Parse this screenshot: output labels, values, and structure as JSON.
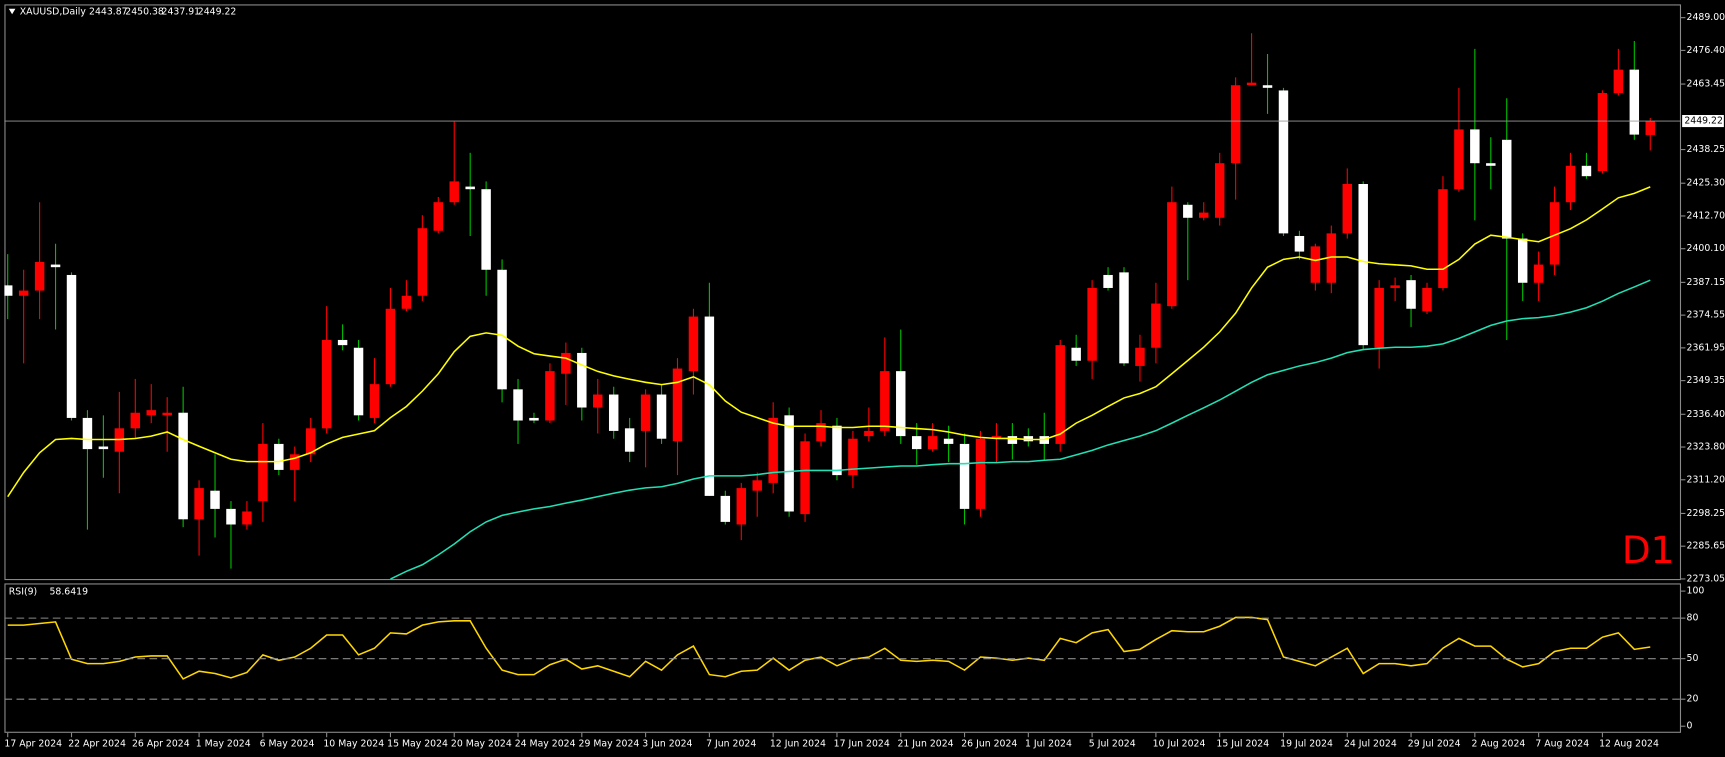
{
  "chart_data": [
    {
      "type": "candlestick",
      "title": "XAUUSD,Daily",
      "annotation": "D1",
      "categories": [
        "17 Apr 2024",
        null,
        null,
        null,
        "22 Apr 2024",
        null,
        null,
        null,
        "26 Apr 2024",
        null,
        null,
        null,
        "1 May 2024",
        null,
        null,
        null,
        "6 May 2024",
        null,
        null,
        null,
        "10 May 2024",
        null,
        null,
        null,
        "15 May 2024",
        null,
        null,
        null,
        "20 May 2024",
        null,
        null,
        null,
        "24 May 2024",
        null,
        null,
        null,
        "29 May 2024",
        null,
        null,
        null,
        "3 Jun 2024",
        null,
        null,
        null,
        "7 Jun 2024",
        null,
        null,
        null,
        "12 Jun 2024",
        null,
        null,
        null,
        "17 Jun 2024",
        null,
        null,
        null,
        "21 Jun 2024",
        null,
        null,
        null,
        "26 Jun 2024",
        null,
        null,
        null,
        "1 Jul 2024",
        null,
        null,
        null,
        "5 Jul 2024",
        null,
        null,
        null,
        "10 Jul 2024",
        null,
        null,
        null,
        "15 Jul 2024",
        null,
        null,
        null,
        "19 Jul 2024",
        null,
        null,
        null,
        "24 Jul 2024",
        null,
        null,
        null,
        "29 Jul 2024",
        null,
        null,
        null,
        "2 Aug 2024",
        null,
        null,
        null,
        "7 Aug 2024",
        null,
        null,
        null,
        "12 Aug 2024",
        null,
        null,
        null
      ],
      "open": [
        2386,
        2382,
        2384,
        2394,
        2390,
        2335,
        2324,
        2322,
        2331,
        2336,
        2336,
        2337,
        2296,
        2307,
        2300,
        2294,
        2303,
        2325,
        2315,
        2321,
        2331,
        2365,
        2362,
        2335,
        2348,
        2377,
        2382,
        2407,
        2418,
        2424,
        2423,
        2392,
        2346,
        2335,
        2334,
        2352,
        2360,
        2339,
        2344,
        2331,
        2330,
        2344,
        2326,
        2353,
        2374,
        2305,
        2294,
        2307,
        2310,
        2336,
        2298,
        2326,
        2332,
        2313,
        2328,
        2330,
        2353,
        2328,
        2323,
        2327,
        2325,
        2300,
        2327,
        2328,
        2328,
        2328,
        2325,
        2362,
        2357,
        2390,
        2391,
        2355,
        2362,
        2378,
        2417,
        2412,
        2412,
        2433,
        2463,
        2463,
        2461,
        2405,
        2387,
        2387,
        2406,
        2425,
        2362,
        2385,
        2388,
        2376,
        2385,
        2423,
        2446,
        2433,
        2442,
        2404,
        2387,
        2394,
        2418,
        2432,
        2430,
        2460,
        2469,
        2443.87
      ],
      "high": [
        2398,
        2392,
        2418,
        2402,
        2391,
        2338,
        2336,
        2345,
        2350,
        2348,
        2343,
        2347,
        2311,
        2321,
        2303,
        2303,
        2333,
        2327,
        2324,
        2335,
        2378,
        2371,
        2365,
        2358,
        2385,
        2388,
        2413,
        2420,
        2449,
        2437,
        2426,
        2396,
        2350,
        2337,
        2356,
        2364,
        2362,
        2350,
        2347,
        2335,
        2346,
        2348,
        2358,
        2377,
        2387,
        2307,
        2310,
        2314,
        2341,
        2339,
        2329,
        2338,
        2335,
        2330,
        2339,
        2366,
        2369,
        2333,
        2333,
        2332,
        2329,
        2330,
        2333,
        2333,
        2331,
        2337,
        2365,
        2367,
        2388,
        2393,
        2393,
        2367,
        2387,
        2424,
        2418,
        2418,
        2437,
        2466,
        2483,
        2475,
        2462,
        2407,
        2402,
        2409,
        2431,
        2426,
        2388,
        2389,
        2390,
        2387,
        2428,
        2462,
        2477,
        2443,
        2458,
        2406,
        2399,
        2424,
        2437,
        2437,
        2461,
        2477,
        2480,
        2450.38
      ],
      "low": [
        2373,
        2356,
        2373,
        2369,
        2334,
        2292,
        2312,
        2306,
        2327,
        2333,
        2322,
        2293,
        2282,
        2289,
        2277,
        2292,
        2295,
        2313,
        2303,
        2318,
        2329,
        2361,
        2334,
        2333,
        2347,
        2376,
        2380,
        2406,
        2417,
        2405,
        2382,
        2341,
        2325,
        2333,
        2333,
        2340,
        2334,
        2329,
        2327,
        2318,
        2316,
        2325,
        2313,
        2344,
        2305,
        2294,
        2288,
        2297,
        2306,
        2297,
        2295,
        2324,
        2311,
        2308,
        2326,
        2328,
        2325,
        2317,
        2322,
        2318,
        2294,
        2297,
        2318,
        2319,
        2324,
        2319,
        2322,
        2355,
        2350,
        2384,
        2355,
        2349,
        2356,
        2377,
        2388,
        2411,
        2409,
        2419,
        2463,
        2452,
        2405,
        2396,
        2384,
        2383,
        2404,
        2361,
        2354,
        2380,
        2370,
        2375,
        2384,
        2422,
        2411,
        2423,
        2365,
        2380,
        2380,
        2390,
        2415,
        2427,
        2429,
        2459,
        2442,
        2437.91
      ],
      "close": [
        2382,
        2384,
        2395,
        2393,
        2335,
        2323,
        2323,
        2331,
        2337,
        2338,
        2337,
        2296,
        2308,
        2300,
        2294,
        2299,
        2325,
        2315,
        2321,
        2331,
        2365,
        2363,
        2336,
        2348,
        2377,
        2382,
        2408,
        2418,
        2426,
        2423,
        2392,
        2346,
        2334,
        2334,
        2353,
        2360,
        2339,
        2344,
        2330,
        2322,
        2344,
        2327,
        2354,
        2374,
        2305,
        2295,
        2308,
        2311,
        2335,
        2299,
        2326,
        2333,
        2313,
        2327,
        2330,
        2353,
        2328,
        2323,
        2328,
        2325,
        2300,
        2327,
        2328,
        2325,
        2326,
        2325,
        2363,
        2357,
        2385,
        2385,
        2356,
        2362,
        2379,
        2418,
        2412,
        2414,
        2433,
        2463,
        2464,
        2462,
        2406,
        2399,
        2401,
        2406,
        2425,
        2363,
        2385,
        2386,
        2377,
        2385,
        2423,
        2446,
        2433,
        2432,
        2404,
        2387,
        2394,
        2418,
        2432,
        2428,
        2460,
        2469,
        2444,
        2449.22
      ],
      "up_color": "#ff0000",
      "down_color": "#ffffff",
      "wick_up_color": "#ff0000",
      "wick_down_color": "#00c000",
      "series": [
        {
          "color": "#ffff00",
          "values": [
            2304.7,
            2314.0,
            2321.6,
            2326.7,
            2327.1,
            2326.7,
            2326.7,
            2326.7,
            2327.1,
            2328.0,
            2329.6,
            2326.7,
            2324.1,
            2321.6,
            2319.1,
            2318.2,
            2318.2,
            2318.2,
            2319.5,
            2321.6,
            2325.0,
            2327.5,
            2328.8,
            2330.1,
            2335.1,
            2339.4,
            2345.3,
            2352.0,
            2360.5,
            2366.4,
            2367.7,
            2366.8,
            2362.6,
            2359.7,
            2358.8,
            2358.0,
            2355.4,
            2352.9,
            2351.2,
            2349.9,
            2348.7,
            2347.8,
            2348.7,
            2350.8,
            2347.8,
            2341.5,
            2337.2,
            2335.1,
            2333.0,
            2331.8,
            2331.8,
            2331.8,
            2331.3,
            2331.3,
            2331.8,
            2331.8,
            2331.3,
            2330.9,
            2330.5,
            2329.6,
            2328.4,
            2327.5,
            2327.1,
            2327.1,
            2326.7,
            2326.7,
            2328.8,
            2333.0,
            2336.0,
            2339.4,
            2342.7,
            2344.4,
            2347.0,
            2352.0,
            2357.1,
            2362.2,
            2368.1,
            2375.3,
            2385.0,
            2393.0,
            2396.0,
            2396.9,
            2395.6,
            2396.9,
            2396.9,
            2395.2,
            2394.3,
            2393.9,
            2393.5,
            2392.2,
            2392.2,
            2396.0,
            2401.9,
            2405.3,
            2404.5,
            2403.6,
            2402.8,
            2405.3,
            2407.8,
            2411.2,
            2415.4,
            2419.7,
            2421.4,
            2423.9
          ]
        },
        {
          "color": "#20e0b4",
          "values": [
            null,
            null,
            null,
            null,
            null,
            null,
            null,
            null,
            null,
            null,
            null,
            null,
            null,
            null,
            null,
            null,
            null,
            null,
            null,
            null,
            null,
            null,
            null,
            null,
            2273.0,
            2276.0,
            2278.5,
            2282.3,
            2286.5,
            2291.2,
            2295.0,
            2297.5,
            2298.8,
            2300.0,
            2300.9,
            2302.2,
            2303.4,
            2304.7,
            2306.0,
            2307.2,
            2308.1,
            2308.5,
            2309.8,
            2311.5,
            2312.7,
            2312.7,
            2312.7,
            2313.2,
            2314.0,
            2314.4,
            2314.8,
            2314.8,
            2314.8,
            2315.3,
            2315.7,
            2316.1,
            2316.5,
            2316.5,
            2317.0,
            2317.4,
            2317.4,
            2317.8,
            2317.8,
            2318.2,
            2318.2,
            2318.7,
            2319.1,
            2320.8,
            2322.5,
            2324.6,
            2326.3,
            2328.0,
            2330.1,
            2333.0,
            2336.0,
            2338.9,
            2341.9,
            2345.3,
            2348.7,
            2351.6,
            2353.3,
            2355.0,
            2356.3,
            2358.0,
            2360.1,
            2361.3,
            2361.8,
            2362.2,
            2362.2,
            2362.6,
            2363.5,
            2365.6,
            2368.1,
            2370.6,
            2372.3,
            2373.2,
            2373.6,
            2374.4,
            2375.7,
            2377.4,
            2379.9,
            2382.9,
            2385.4,
            2388.0
          ]
        }
      ],
      "ylim": [
        2272.6,
        2494.1
      ],
      "yticks": [
        {
          "value": 2489.0,
          "label": "2489.00"
        },
        {
          "value": 2476.4,
          "label": "2476.40"
        },
        {
          "value": 2463.45,
          "label": "2463.45"
        },
        {
          "value": 2438.25,
          "label": "2438.25"
        },
        {
          "value": 2425.3,
          "label": "2425.30"
        },
        {
          "value": 2412.7,
          "label": "2412.70"
        },
        {
          "value": 2400.1,
          "label": "2400.10"
        },
        {
          "value": 2387.15,
          "label": "2387.15"
        },
        {
          "value": 2374.55,
          "label": "2374.55"
        },
        {
          "value": 2361.95,
          "label": "2361.95"
        },
        {
          "value": 2349.35,
          "label": "2349.35"
        },
        {
          "value": 2336.4,
          "label": "2336.40"
        },
        {
          "value": 2323.8,
          "label": "2323.80"
        },
        {
          "value": 2311.2,
          "label": "2311.20"
        },
        {
          "value": 2298.25,
          "label": "2298.25"
        },
        {
          "value": 2285.65,
          "label": "2285.65"
        },
        {
          "value": 2273.05,
          "label": "2273.05"
        }
      ]
    },
    {
      "type": "line",
      "title": "RSI(9)",
      "series": [
        {
          "color": "#ffd700",
          "values": [
            74.8,
            74.8,
            76.0,
            77.2,
            49.6,
            46.3,
            46.3,
            48.0,
            51.2,
            52.0,
            52.0,
            35.0,
            40.7,
            39.0,
            35.8,
            39.8,
            52.8,
            48.8,
            51.2,
            57.7,
            67.5,
            67.5,
            52.8,
            57.7,
            69.1,
            68.3,
            74.8,
            77.2,
            78.0,
            78.0,
            57.7,
            41.5,
            38.2,
            38.2,
            45.5,
            49.6,
            42.3,
            44.7,
            40.7,
            36.6,
            48.0,
            41.5,
            52.8,
            59.3,
            38.2,
            36.6,
            40.7,
            41.5,
            50.4,
            41.5,
            48.8,
            51.2,
            44.7,
            49.6,
            51.2,
            57.7,
            48.8,
            48.0,
            48.8,
            48.0,
            41.5,
            51.2,
            50.4,
            48.8,
            50.4,
            48.8,
            65.0,
            61.8,
            69.1,
            71.5,
            55.3,
            56.9,
            64.2,
            70.7,
            69.9,
            69.9,
            74.0,
            80.5,
            80.5,
            78.9,
            51.2,
            48.0,
            44.7,
            51.2,
            57.7,
            39.0,
            46.3,
            46.3,
            44.7,
            46.3,
            57.7,
            65.0,
            59.3,
            59.3,
            49.6,
            43.9,
            46.3,
            55.3,
            57.7,
            57.7,
            65.9,
            69.1,
            56.9,
            58.6419
          ]
        }
      ],
      "ylim": [
        -4.9,
        105.7
      ],
      "yticks": [
        0,
        20,
        50,
        80,
        100
      ],
      "levels": [
        20,
        50,
        80
      ]
    }
  ]
}
